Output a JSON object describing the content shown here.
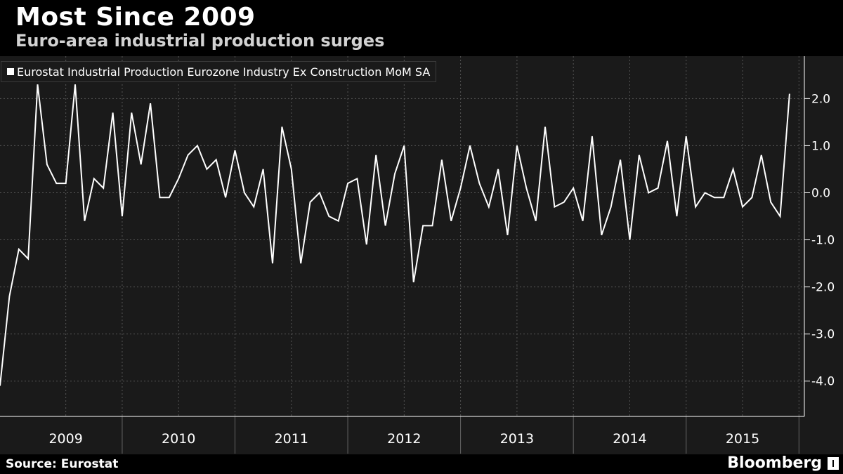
{
  "header": {
    "title": "Most Since 2009",
    "subtitle": "Euro-area industrial production surges"
  },
  "footer": {
    "source": "Source: Eurostat",
    "brand": "Bloomberg"
  },
  "colors": {
    "background": "#000000",
    "plot_background": "#1a1a1a",
    "line": "#ffffff",
    "grid": "#555555"
  },
  "chart_data": {
    "type": "line",
    "title": "Most Since 2009",
    "subtitle": "Euro-area industrial production surges",
    "xlabel": "",
    "ylabel": "",
    "grid": true,
    "legend_position": "top-left",
    "y_axis_side": "right",
    "ylim": [
      -4.75,
      2.9
    ],
    "yticks": [
      2.0,
      1.0,
      0.0,
      -1.0,
      -2.0,
      -3.0,
      -4.0
    ],
    "ytick_labels": [
      "2.0",
      "1.0",
      "0.0",
      "-1.0",
      "-2.0",
      "-3.0",
      "-4.0"
    ],
    "x_start": "2008-12",
    "year_labels": [
      "2009",
      "2010",
      "2011",
      "2012",
      "2013",
      "2014",
      "2015"
    ],
    "series": [
      {
        "name": "Eurostat Industrial Production Eurozone Industry Ex Construction MoM SA",
        "values": [
          -4.1,
          -2.2,
          -1.2,
          -1.4,
          2.3,
          0.6,
          0.2,
          0.2,
          2.3,
          -0.6,
          0.3,
          0.1,
          1.7,
          -0.5,
          1.7,
          0.6,
          1.9,
          -0.1,
          -0.1,
          0.3,
          0.8,
          1.0,
          0.5,
          0.7,
          -0.1,
          0.9,
          0.0,
          -0.3,
          0.5,
          -1.5,
          1.4,
          0.5,
          -1.5,
          -0.2,
          0.0,
          -0.5,
          -0.6,
          0.2,
          0.3,
          -1.1,
          0.8,
          -0.7,
          0.4,
          1.0,
          -1.9,
          -0.7,
          -0.7,
          0.7,
          -0.6,
          0.1,
          1.0,
          0.2,
          -0.3,
          0.5,
          -0.9,
          1.0,
          0.1,
          -0.6,
          1.4,
          -0.3,
          -0.2,
          0.1,
          -0.6,
          1.2,
          -0.9,
          -0.3,
          0.7,
          -1.0,
          0.8,
          0.0,
          0.1,
          1.1,
          -0.5,
          1.2,
          -0.3,
          0.0,
          -0.1,
          -0.1,
          0.5,
          -0.3,
          -0.1,
          0.8,
          -0.2,
          -0.5,
          2.1
        ]
      }
    ]
  }
}
